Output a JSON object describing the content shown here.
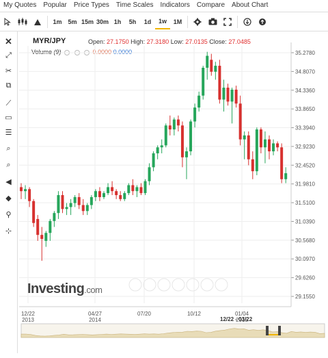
{
  "menu": {
    "items": [
      "My Quotes",
      "Popular",
      "Price Types",
      "Time Scales",
      "Indicators",
      "Compare",
      "About Chart"
    ]
  },
  "toolbar": {
    "intervals": [
      "1m",
      "5m",
      "15m",
      "30m",
      "1h",
      "5h",
      "1d",
      "1w",
      "1M"
    ],
    "active_interval": "1w"
  },
  "header": {
    "symbol": "MYR/JPY",
    "open_label": "Open:",
    "open": "27.1750",
    "high_label": "High:",
    "high": "27.3180",
    "low_label": "Low:",
    "low": "27.0135",
    "close_label": "Close:",
    "close": "27.0485"
  },
  "volume": {
    "label": "Volume",
    "period": "(9)",
    "value1": "0.0000",
    "value2": "0.0000"
  },
  "brand": {
    "name": "Investing",
    "domain": ".com"
  },
  "navigator": {
    "range": "12/22 - 03/22"
  },
  "colors": {
    "up": "#26a65b",
    "down": "#d7312f",
    "grid": "#eeeeee",
    "axis": "#555555"
  },
  "chart_data": {
    "type": "candlestick",
    "interval": "weekly",
    "y_ticks": [
      "35.2780",
      "34.8070",
      "34.3360",
      "33.8650",
      "33.3940",
      "32.9230",
      "32.4520",
      "31.9810",
      "31.5100",
      "31.0390",
      "30.5680",
      "30.0970",
      "29.6260",
      "29.1550"
    ],
    "x_ticks": [
      {
        "label": "12/22",
        "sub": "2013"
      },
      {
        "label": "04/27",
        "sub": "2014"
      },
      {
        "label": "07/20",
        "sub": ""
      },
      {
        "label": "10/12",
        "sub": ""
      },
      {
        "label": "01/04",
        "sub": "2015"
      }
    ],
    "ylim": [
      29.155,
      35.278
    ],
    "candles": [
      [
        31.9,
        32.0,
        31.6,
        31.8
      ],
      [
        31.8,
        31.95,
        31.6,
        31.85
      ],
      [
        31.85,
        31.9,
        31.4,
        31.55
      ],
      [
        31.55,
        31.6,
        30.9,
        31.0
      ],
      [
        31.1,
        31.2,
        30.55,
        30.7
      ],
      [
        30.7,
        30.9,
        30.05,
        30.6
      ],
      [
        30.55,
        30.8,
        30.4,
        30.75
      ],
      [
        30.75,
        31.1,
        30.55,
        31.05
      ],
      [
        31.05,
        31.3,
        30.9,
        31.25
      ],
      [
        31.25,
        31.8,
        31.1,
        31.7
      ],
      [
        31.7,
        31.8,
        31.25,
        31.35
      ],
      [
        31.35,
        31.5,
        31.2,
        31.4
      ],
      [
        31.4,
        31.6,
        31.2,
        31.5
      ],
      [
        31.5,
        31.7,
        31.4,
        31.65
      ],
      [
        31.65,
        31.75,
        31.35,
        31.45
      ],
      [
        31.45,
        31.6,
        31.2,
        31.3
      ],
      [
        31.3,
        31.5,
        31.2,
        31.45
      ],
      [
        31.45,
        31.7,
        31.35,
        31.65
      ],
      [
        31.65,
        31.85,
        31.55,
        31.8
      ],
      [
        31.8,
        31.9,
        31.55,
        31.65
      ],
      [
        31.65,
        31.8,
        31.6,
        31.75
      ],
      [
        31.75,
        32.0,
        31.7,
        31.9
      ],
      [
        31.9,
        32.05,
        31.7,
        31.8
      ],
      [
        31.8,
        31.85,
        31.6,
        31.7
      ],
      [
        31.7,
        31.8,
        31.55,
        31.6
      ],
      [
        31.6,
        31.8,
        31.55,
        31.75
      ],
      [
        31.75,
        32.0,
        31.7,
        31.95
      ],
      [
        31.95,
        32.1,
        31.7,
        31.8
      ],
      [
        31.8,
        31.95,
        31.65,
        31.9
      ],
      [
        31.9,
        32.0,
        31.7,
        31.75
      ],
      [
        31.75,
        32.1,
        31.7,
        32.05
      ],
      [
        32.05,
        32.5,
        31.95,
        32.4
      ],
      [
        32.4,
        32.8,
        32.3,
        32.75
      ],
      [
        32.75,
        32.95,
        32.6,
        32.9
      ],
      [
        32.9,
        33.1,
        32.75,
        32.95
      ],
      [
        32.95,
        33.5,
        32.9,
        33.45
      ],
      [
        33.45,
        33.7,
        33.2,
        33.35
      ],
      [
        33.35,
        33.65,
        33.2,
        33.6
      ],
      [
        33.6,
        33.7,
        33.3,
        33.45
      ],
      [
        33.45,
        33.55,
        32.4,
        32.65
      ],
      [
        32.65,
        32.9,
        32.1,
        32.8
      ],
      [
        32.8,
        33.6,
        32.7,
        33.55
      ],
      [
        33.55,
        34.0,
        33.4,
        33.9
      ],
      [
        33.9,
        34.3,
        33.8,
        34.2
      ],
      [
        34.2,
        34.95,
        34.1,
        34.9
      ],
      [
        34.9,
        35.3,
        34.6,
        35.2
      ],
      [
        35.1,
        35.25,
        34.7,
        34.8
      ],
      [
        34.8,
        35.05,
        34.6,
        34.95
      ],
      [
        34.95,
        35.1,
        34.0,
        34.1
      ],
      [
        34.1,
        34.6,
        33.8,
        34.4
      ],
      [
        34.4,
        34.5,
        33.95,
        34.05
      ],
      [
        34.05,
        34.4,
        33.5,
        34.35
      ],
      [
        34.35,
        34.45,
        33.9,
        34.0
      ],
      [
        34.0,
        34.2,
        32.95,
        33.1
      ],
      [
        33.1,
        33.3,
        32.6,
        33.2
      ],
      [
        33.2,
        33.3,
        32.45,
        32.6
      ],
      [
        32.6,
        32.8,
        32.1,
        32.3
      ],
      [
        32.3,
        33.4,
        32.2,
        33.35
      ],
      [
        33.35,
        33.4,
        32.75,
        32.9
      ],
      [
        32.9,
        33.3,
        32.5,
        33.1
      ],
      [
        33.1,
        33.2,
        32.6,
        32.8
      ],
      [
        32.8,
        33.1,
        32.7,
        33.0
      ],
      [
        33.0,
        33.05,
        32.8,
        32.9
      ],
      [
        32.9,
        33.0,
        32.0,
        32.1
      ],
      [
        32.1,
        32.4,
        32.0,
        32.25
      ]
    ]
  }
}
